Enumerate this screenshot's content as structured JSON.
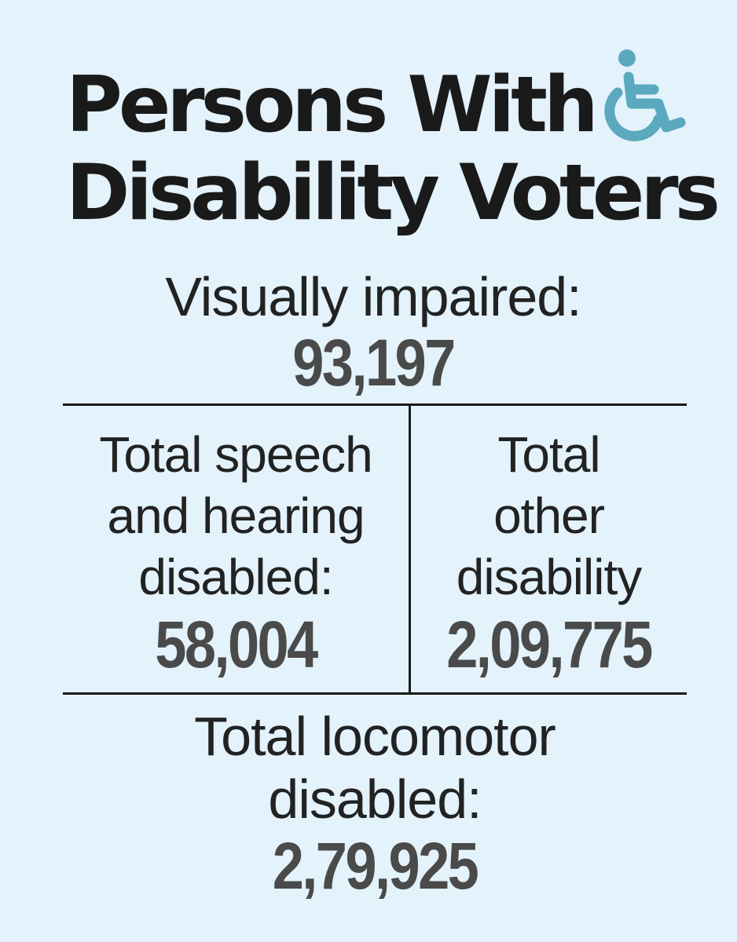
{
  "title": {
    "line1": "Persons With",
    "line2": "Disability Voters",
    "icon": "wheelchair-icon",
    "icon_color": "#5aa9be"
  },
  "background_color": "#e3f2fb",
  "stats": {
    "visually_impaired": {
      "label": "Visually impaired:",
      "value": "93,197"
    },
    "speech_hearing": {
      "label_lines": [
        "Total speech",
        "and hearing",
        "disabled:"
      ],
      "value": "58,004"
    },
    "other": {
      "label_lines": [
        "Total",
        "other",
        "disability"
      ],
      "value": "2,09,775"
    },
    "locomotor": {
      "label_lines": [
        "Total locomotor",
        "disabled:"
      ],
      "value": "2,79,925"
    }
  }
}
